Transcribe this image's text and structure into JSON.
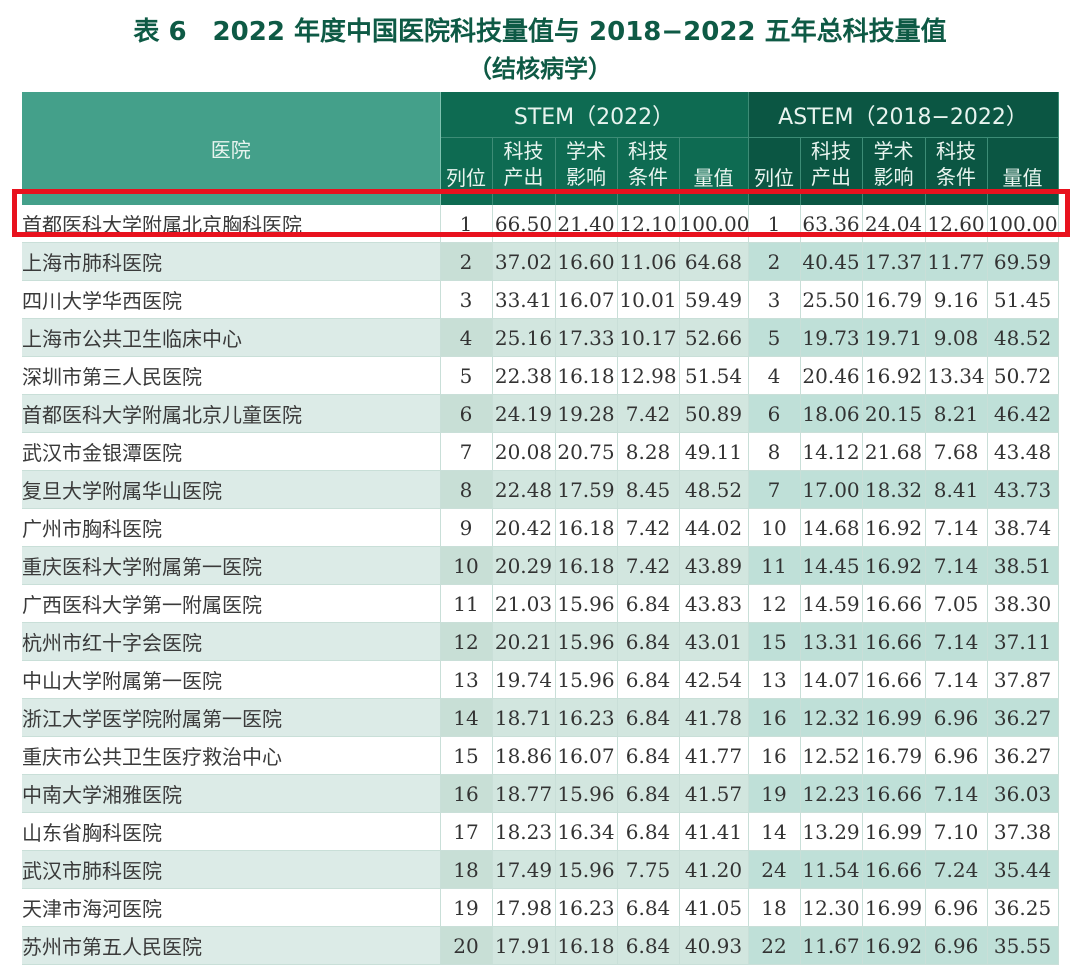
{
  "title": "表 6　2022 年度中国医院科技量值与 2018−2022 五年总科技量值",
  "subtitle": "（结核病学）",
  "table": {
    "hospital_header": "医院",
    "groups": [
      {
        "label": "STEM（2022）"
      },
      {
        "label": "ASTEM（2018−2022）"
      }
    ],
    "sub_headers": [
      "列位",
      "科技产出",
      "学术影响",
      "科技条件",
      "量值"
    ],
    "sub_headers_lines": [
      [
        "列位"
      ],
      [
        "科技",
        "产出"
      ],
      [
        "学术",
        "影响"
      ],
      [
        "科技",
        "条件"
      ],
      [
        "量值"
      ]
    ],
    "rows": [
      {
        "name": "首都医科大学附属北京胸科医院",
        "stem": [
          "1",
          "66.50",
          "21.40",
          "12.10",
          "100.00"
        ],
        "astem": [
          "1",
          "63.36",
          "24.04",
          "12.60",
          "100.00"
        ]
      },
      {
        "name": "上海市肺科医院",
        "stem": [
          "2",
          "37.02",
          "16.60",
          "11.06",
          "64.68"
        ],
        "astem": [
          "2",
          "40.45",
          "17.37",
          "11.77",
          "69.59"
        ]
      },
      {
        "name": "四川大学华西医院",
        "stem": [
          "3",
          "33.41",
          "16.07",
          "10.01",
          "59.49"
        ],
        "astem": [
          "3",
          "25.50",
          "16.79",
          "9.16",
          "51.45"
        ]
      },
      {
        "name": "上海市公共卫生临床中心",
        "stem": [
          "4",
          "25.16",
          "17.33",
          "10.17",
          "52.66"
        ],
        "astem": [
          "5",
          "19.73",
          "19.71",
          "9.08",
          "48.52"
        ]
      },
      {
        "name": "深圳市第三人民医院",
        "stem": [
          "5",
          "22.38",
          "16.18",
          "12.98",
          "51.54"
        ],
        "astem": [
          "4",
          "20.46",
          "16.92",
          "13.34",
          "50.72"
        ]
      },
      {
        "name": "首都医科大学附属北京儿童医院",
        "stem": [
          "6",
          "24.19",
          "19.28",
          "7.42",
          "50.89"
        ],
        "astem": [
          "6",
          "18.06",
          "20.15",
          "8.21",
          "46.42"
        ]
      },
      {
        "name": "武汉市金银潭医院",
        "stem": [
          "7",
          "20.08",
          "20.75",
          "8.28",
          "49.11"
        ],
        "astem": [
          "8",
          "14.12",
          "21.68",
          "7.68",
          "43.48"
        ]
      },
      {
        "name": "复旦大学附属华山医院",
        "stem": [
          "8",
          "22.48",
          "17.59",
          "8.45",
          "48.52"
        ],
        "astem": [
          "7",
          "17.00",
          "18.32",
          "8.41",
          "43.73"
        ]
      },
      {
        "name": "广州市胸科医院",
        "stem": [
          "9",
          "20.42",
          "16.18",
          "7.42",
          "44.02"
        ],
        "astem": [
          "10",
          "14.68",
          "16.92",
          "7.14",
          "38.74"
        ]
      },
      {
        "name": "重庆医科大学附属第一医院",
        "stem": [
          "10",
          "20.29",
          "16.18",
          "7.42",
          "43.89"
        ],
        "astem": [
          "11",
          "14.45",
          "16.92",
          "7.14",
          "38.51"
        ]
      },
      {
        "name": "广西医科大学第一附属医院",
        "stem": [
          "11",
          "21.03",
          "15.96",
          "6.84",
          "43.83"
        ],
        "astem": [
          "12",
          "14.59",
          "16.66",
          "7.05",
          "38.30"
        ]
      },
      {
        "name": "杭州市红十字会医院",
        "stem": [
          "12",
          "20.21",
          "15.96",
          "6.84",
          "43.01"
        ],
        "astem": [
          "15",
          "13.31",
          "16.66",
          "7.14",
          "37.11"
        ]
      },
      {
        "name": "中山大学附属第一医院",
        "stem": [
          "13",
          "19.74",
          "15.96",
          "6.84",
          "42.54"
        ],
        "astem": [
          "13",
          "14.07",
          "16.66",
          "7.14",
          "37.87"
        ]
      },
      {
        "name": "浙江大学医学院附属第一医院",
        "stem": [
          "14",
          "18.71",
          "16.23",
          "6.84",
          "41.78"
        ],
        "astem": [
          "16",
          "12.32",
          "16.99",
          "6.96",
          "36.27"
        ]
      },
      {
        "name": "重庆市公共卫生医疗救治中心",
        "stem": [
          "15",
          "18.86",
          "16.07",
          "6.84",
          "41.77"
        ],
        "astem": [
          "16",
          "12.52",
          "16.79",
          "6.96",
          "36.27"
        ]
      },
      {
        "name": "中南大学湘雅医院",
        "stem": [
          "16",
          "18.77",
          "15.96",
          "6.84",
          "41.57"
        ],
        "astem": [
          "19",
          "12.23",
          "16.66",
          "7.14",
          "36.03"
        ]
      },
      {
        "name": "山东省胸科医院",
        "stem": [
          "17",
          "18.23",
          "16.34",
          "6.84",
          "41.41"
        ],
        "astem": [
          "14",
          "13.29",
          "16.99",
          "7.10",
          "37.38"
        ]
      },
      {
        "name": "武汉市肺科医院",
        "stem": [
          "18",
          "17.49",
          "15.96",
          "7.75",
          "41.20"
        ],
        "astem": [
          "24",
          "11.54",
          "16.66",
          "7.24",
          "35.44"
        ]
      },
      {
        "name": "天津市海河医院",
        "stem": [
          "19",
          "17.98",
          "16.23",
          "6.84",
          "41.05"
        ],
        "astem": [
          "18",
          "12.30",
          "16.99",
          "6.96",
          "36.25"
        ]
      },
      {
        "name": "苏州市第五人民医院",
        "stem": [
          "20",
          "17.91",
          "16.18",
          "6.84",
          "40.93"
        ],
        "astem": [
          "22",
          "11.67",
          "16.92",
          "6.96",
          "35.55"
        ]
      }
    ]
  },
  "highlight": {
    "row_index": 0,
    "color": "#e8121e"
  },
  "colors": {
    "title": "#0e5a45",
    "hospital_header_bg": "#44a08a",
    "stem_header_bg": "#0e6b52",
    "astem_header_bg": "#0b5643",
    "row_alt_bg": "#dcebe7",
    "astem_alt_bg": "#bfe0d8"
  }
}
